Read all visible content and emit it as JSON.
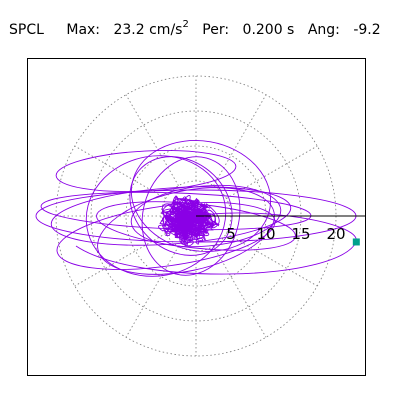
{
  "header": {
    "station": "SPCL",
    "max_label": "Max:",
    "max_value": "23.2 cm/s",
    "max_unit_exp": "2",
    "period_label": "Per:",
    "period_value": "0.200 s",
    "angle_label": "Ang:",
    "angle_value": "-9.2"
  },
  "colors": {
    "trace": "#8a00e6",
    "marker": "#00a08c",
    "grid": "#777777",
    "axis": "#000000"
  },
  "chart_data": {
    "type": "polar-trace",
    "title": "",
    "radial_axis": {
      "range": [
        0,
        23.2
      ],
      "rings": [
        5,
        10,
        15,
        20
      ],
      "ring_style": "dotted",
      "spokes_deg": [
        0,
        30,
        60,
        90,
        120,
        150,
        180,
        210,
        240,
        270,
        300,
        330
      ],
      "tick_labels": [
        "5",
        "10",
        "15",
        "20"
      ],
      "tick_label_angle_deg": 0
    },
    "peak": {
      "magnitude": 23.2,
      "angle_deg": -9.2,
      "unit": "cm/s2",
      "period_s": 0.2
    },
    "trace_description": "dense particle motion orbit centered at origin, elongated horizontally, with a long lobe ending at the peak marker"
  }
}
